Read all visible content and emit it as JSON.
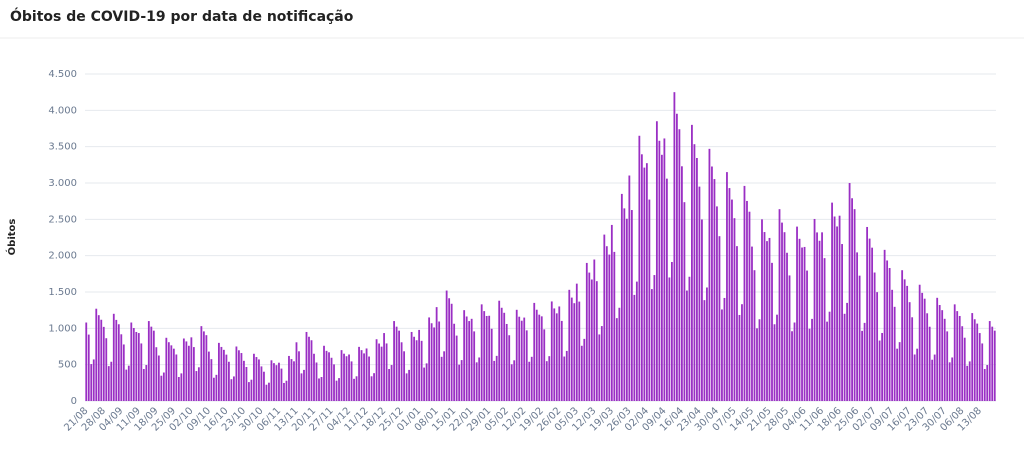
{
  "chart_data": {
    "type": "bar",
    "title": "Óbitos de COVID-19 por data de notificação",
    "y_label": "Óbitos",
    "color": "#9a2fc4",
    "grid": true,
    "ylim": [
      0,
      4500
    ],
    "yticks": [
      0,
      500,
      {
        "value": 1000,
        "label": "1.000"
      },
      {
        "value": 1500,
        "label": "1.500"
      },
      {
        "value": 2000,
        "label": "2.000"
      },
      {
        "value": 2500,
        "label": "2.500"
      },
      {
        "value": 3000,
        "label": "3.000"
      },
      {
        "value": 3500,
        "label": "3.500"
      },
      {
        "value": 4000,
        "label": "4.000"
      },
      {
        "value": 4500,
        "label": "4.500"
      }
    ],
    "categories": [
      "21/08",
      null,
      null,
      null,
      null,
      null,
      null,
      "28/08",
      null,
      null,
      null,
      null,
      null,
      null,
      "04/09",
      null,
      null,
      null,
      null,
      null,
      null,
      "11/09",
      null,
      null,
      null,
      null,
      null,
      null,
      "18/09",
      null,
      null,
      null,
      null,
      null,
      null,
      "25/09",
      null,
      null,
      null,
      null,
      null,
      null,
      "02/10",
      null,
      null,
      null,
      null,
      null,
      null,
      "09/10",
      null,
      null,
      null,
      null,
      null,
      null,
      "16/10",
      null,
      null,
      null,
      null,
      null,
      null,
      "23/10",
      null,
      null,
      null,
      null,
      null,
      null,
      "30/10",
      null,
      null,
      null,
      null,
      null,
      null,
      "06/11",
      null,
      null,
      null,
      null,
      null,
      null,
      "13/11",
      null,
      null,
      null,
      null,
      null,
      null,
      "20/11",
      null,
      null,
      null,
      null,
      null,
      null,
      "27/11",
      null,
      null,
      null,
      null,
      null,
      null,
      "04/12",
      null,
      null,
      null,
      null,
      null,
      null,
      "11/12",
      null,
      null,
      null,
      null,
      null,
      null,
      "18/12",
      null,
      null,
      null,
      null,
      null,
      null,
      "25/12",
      null,
      null,
      null,
      null,
      null,
      null,
      "01/01",
      null,
      null,
      null,
      null,
      null,
      null,
      "08/01",
      null,
      null,
      null,
      null,
      null,
      null,
      "15/01",
      null,
      null,
      null,
      null,
      null,
      null,
      "22/01",
      null,
      null,
      null,
      null,
      null,
      null,
      "29/01",
      null,
      null,
      null,
      null,
      null,
      null,
      "05/02",
      null,
      null,
      null,
      null,
      null,
      null,
      "12/02",
      null,
      null,
      null,
      null,
      null,
      null,
      "19/02",
      null,
      null,
      null,
      null,
      null,
      null,
      "26/02",
      null,
      null,
      null,
      null,
      null,
      null,
      "05/03",
      null,
      null,
      null,
      null,
      null,
      null,
      "12/03",
      null,
      null,
      null,
      null,
      null,
      null,
      "19/03",
      null,
      null,
      null,
      null,
      null,
      null,
      "26/03",
      null,
      null,
      null,
      null,
      null,
      null,
      "02/04",
      null,
      null,
      null,
      null,
      null,
      null,
      "09/04",
      null,
      null,
      null,
      null,
      null,
      null,
      "16/04",
      null,
      null,
      null,
      null,
      null,
      null,
      "23/04",
      null,
      null,
      null,
      null,
      null,
      null,
      "30/04",
      null,
      null,
      null,
      null,
      null,
      null,
      "07/05",
      null,
      null,
      null,
      null,
      null,
      null,
      "14/05",
      null,
      null,
      null,
      null,
      null,
      null,
      "21/05",
      null,
      null,
      null,
      null,
      null,
      null,
      "28/05",
      null,
      null,
      null,
      null,
      null,
      null,
      "04/06",
      null,
      null,
      null,
      null,
      null,
      null,
      "11/06",
      null,
      null,
      null,
      null,
      null,
      null,
      "18/06",
      null,
      null,
      null,
      null,
      null,
      null,
      "25/06",
      null,
      null,
      null,
      null,
      null,
      null,
      "02/07",
      null,
      null,
      null,
      null,
      null,
      null,
      "09/07",
      null,
      null,
      null,
      null,
      null,
      null,
      "16/07",
      null,
      null,
      null,
      null,
      null,
      null,
      "23/07",
      null,
      null,
      null,
      null,
      null,
      null,
      "30/07",
      null,
      null,
      null,
      null,
      null,
      null,
      "06/08",
      null,
      null,
      null,
      null,
      null,
      null,
      "13/08",
      null,
      null,
      null,
      null,
      null,
      null
    ],
    "values": [
      1080,
      914,
      508,
      572,
      1270,
      1181,
      1118,
      1020,
      864,
      480,
      540,
      1200,
      1116,
      1056,
      918,
      778,
      432,
      486,
      1080,
      1004,
      950,
      935,
      792,
      440,
      495,
      1100,
      1023,
      968,
      740,
      626,
      348,
      392,
      870,
      809,
      766,
      720,
      640,
      330,
      380,
      860,
      820,
      760,
      876,
      742,
      412,
      464,
      1030,
      958,
      906,
      680,
      576,
      320,
      360,
      800,
      744,
      704,
      638,
      540,
      300,
      338,
      750,
      698,
      660,
      553,
      468,
      260,
      293,
      650,
      605,
      572,
      476,
      403,
      224,
      252,
      560,
      521,
      493,
      527,
      446,
      248,
      279,
      620,
      577,
      546,
      808,
      684,
      380,
      428,
      950,
      884,
      836,
      650,
      530,
      310,
      330,
      760,
      690,
      670,
      595,
      504,
      280,
      315,
      700,
      651,
      616,
      640,
      545,
      305,
      340,
      745,
      700,
      655,
      723,
      612,
      340,
      383,
      850,
      791,
      748,
      935,
      792,
      440,
      495,
      1100,
      1023,
      968,
      808,
      684,
      380,
      428,
      950,
      884,
      836,
      978,
      828,
      460,
      518,
      1150,
      1070,
      1012,
      1292,
      1094,
      608,
      684,
      1520,
      1414,
      1338,
      1063,
      900,
      500,
      563,
      1250,
      1163,
      1100,
      1131,
      958,
      532,
      599,
      1330,
      1237,
      1170,
      1173,
      994,
      552,
      621,
      1380,
      1283,
      1214,
      1060,
      905,
      505,
      560,
      1255,
      1160,
      1105,
      1148,
      972,
      540,
      608,
      1350,
      1256,
      1188,
      1165,
      986,
      548,
      617,
      1370,
      1274,
      1206,
      1301,
      1102,
      612,
      689,
      1530,
      1423,
      1346,
      1615,
      1368,
      760,
      855,
      1900,
      1767,
      1672,
      1947,
      1649,
      916,
      1031,
      2290,
      2130,
      2015,
      2423,
      2052,
      1140,
      1283,
      2850,
      2651,
      2508,
      3103,
      2628,
      1460,
      1643,
      3650,
      3395,
      3212,
      3273,
      2772,
      1540,
      1733,
      3850,
      3581,
      3388,
      3613,
      3060,
      1700,
      1913,
      4250,
      3953,
      3740,
      3230,
      2736,
      1520,
      1710,
      3800,
      3534,
      3344,
      2950,
      2498,
      1388,
      1562,
      3470,
      3227,
      3054,
      2678,
      2268,
      1260,
      1418,
      3150,
      2930,
      2772,
      2516,
      2131,
      1184,
      1332,
      2960,
      2753,
      2605,
      2125,
      1800,
      1000,
      1125,
      2500,
      2325,
      2200,
      2244,
      1901,
      1056,
      1188,
      2640,
      2455,
      2323,
      2040,
      1728,
      960,
      1080,
      2400,
      2232,
      2112,
      2120,
      1795,
      995,
      1130,
      2505,
      2320,
      2205,
      2321,
      1966,
      1092,
      1229,
      2730,
      2539,
      2402,
      2550,
      2160,
      1200,
      1350,
      3000,
      2790,
      2640,
      2045,
      1725,
      965,
      1075,
      2395,
      2235,
      2110,
      1768,
      1498,
      832,
      936,
      2080,
      1934,
      1830,
      1530,
      1296,
      720,
      810,
      1800,
      1674,
      1584,
      1360,
      1152,
      640,
      720,
      1600,
      1488,
      1408,
      1207,
      1022,
      568,
      639,
      1420,
      1321,
      1250,
      1131,
      958,
      532,
      599,
      1330,
      1237,
      1170,
      1029,
      871,
      484,
      545,
      1210,
      1125,
      1065,
      935,
      792,
      440,
      495,
      1100,
      1023,
      968
    ]
  }
}
